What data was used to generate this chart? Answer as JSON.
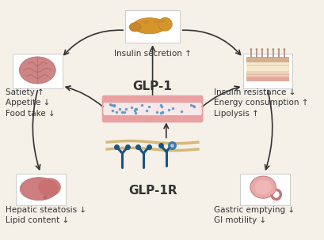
{
  "bg_color": "#f5f0e8",
  "box_color": "#ffffff",
  "box_edge_color": "#cccccc",
  "title_glp1": "GLP-1",
  "title_glp1r": "GLP-1R",
  "arrow_color": "#333333",
  "text_color": "#333333",
  "labels": {
    "top": "Insulin secretion ↑",
    "left": "Satiety ↑\nAppetite ↓\nFood take ↓",
    "right": "Insulin resistance ↓\nEnergy consumption ↑\nLipolysis ↑",
    "bottom_left": "Hepatic steatosis ↓\nLipid content ↓",
    "bottom_right": "Gastric emptying ↓\nGI motility ↓"
  },
  "font_size_labels": 7.5,
  "font_size_title": 11,
  "blood_vessel_color_top": "#e8a0a0",
  "blood_vessel_dot_color": "#5599cc",
  "cell_membrane_color": "#d4b87a",
  "receptor_color": "#1a5580",
  "receptor_ball_color": "#3377aa"
}
